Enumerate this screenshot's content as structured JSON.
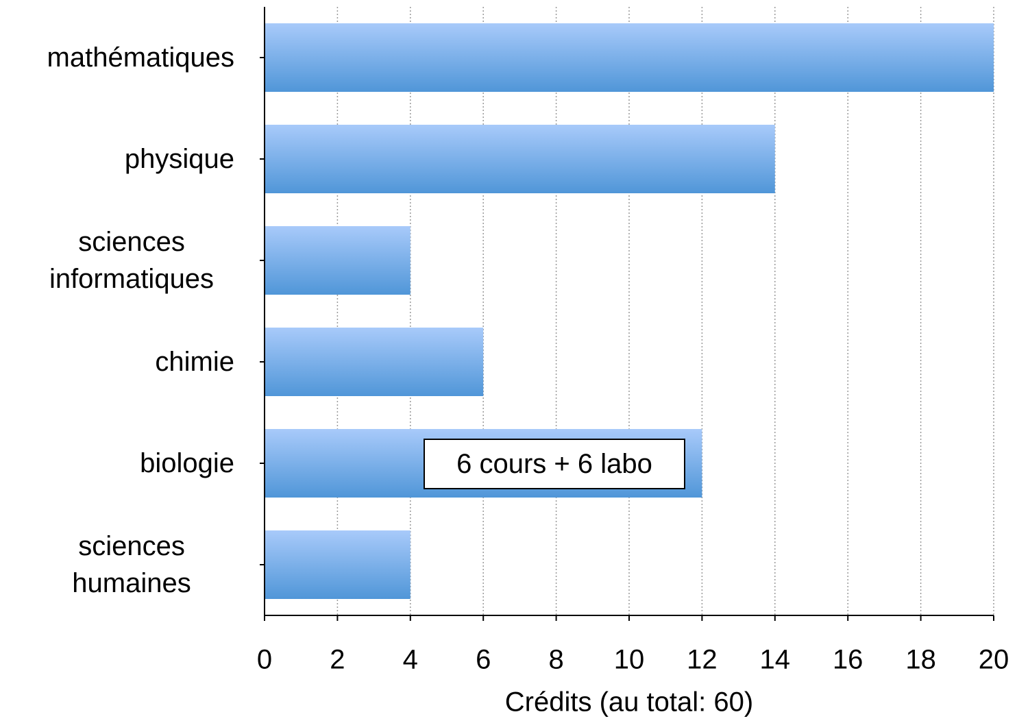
{
  "chart_data": {
    "type": "bar",
    "orientation": "horizontal",
    "categories": [
      "mathématiques",
      "physique",
      "sciences informatiques",
      "chimie",
      "biologie",
      "sciences humaines"
    ],
    "values": [
      20,
      14,
      4,
      6,
      12,
      4
    ],
    "color": "#5096d8",
    "xlabel": "Crédits (au total: 60)",
    "xlim": [
      0,
      20
    ],
    "xticks": [
      0,
      2,
      4,
      6,
      8,
      10,
      12,
      14,
      16,
      18,
      20
    ],
    "grid": true,
    "annotations": [
      {
        "text": "6 cours + 6 labo",
        "category": "biologie"
      }
    ]
  }
}
